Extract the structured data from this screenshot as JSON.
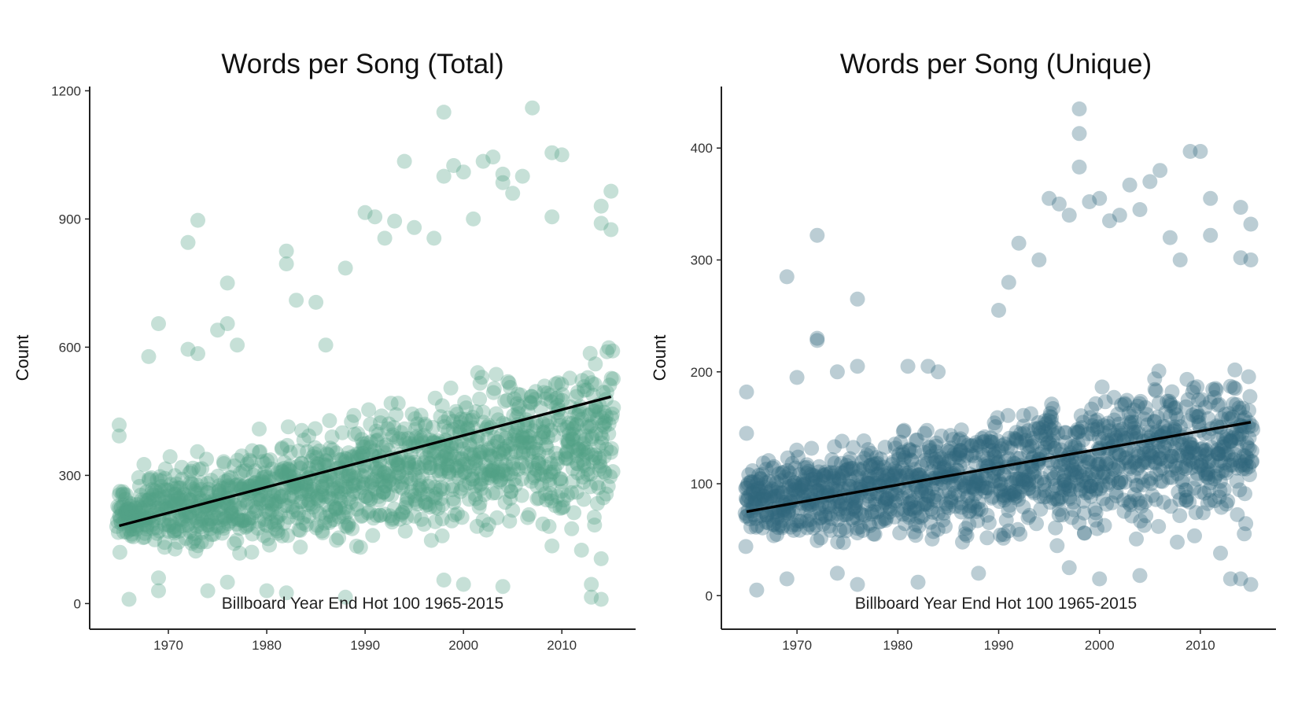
{
  "chart_data": [
    {
      "id": "total",
      "type": "scatter",
      "title": "Words per Song (Total)",
      "ylabel": "Count",
      "caption": "Billboard Year End Hot 100 1965-2015",
      "color": "#52a285",
      "point_opacity": 0.33,
      "xlim": [
        1962,
        2017.5
      ],
      "ylim": [
        -60,
        1210
      ],
      "xticks": [
        1970,
        1980,
        1990,
        2000,
        2010
      ],
      "yticks": [
        0,
        300,
        600,
        900,
        1200
      ],
      "year_range": [
        1965,
        2015
      ],
      "trend": {
        "x": [
          1965,
          2015
        ],
        "y": [
          182,
          484
        ]
      },
      "band": {
        "low_start": 95,
        "low_end": 185,
        "high_start": 310,
        "high_end": 610,
        "spread": 1
      },
      "outliers": [
        {
          "x": 1965,
          "y": 418
        },
        {
          "x": 1965,
          "y": 392
        },
        {
          "x": 1966,
          "y": 10
        },
        {
          "x": 1968,
          "y": 578
        },
        {
          "x": 1969,
          "y": 655
        },
        {
          "x": 1969,
          "y": 60
        },
        {
          "x": 1969,
          "y": 30
        },
        {
          "x": 1972,
          "y": 845
        },
        {
          "x": 1973,
          "y": 897
        },
        {
          "x": 1972,
          "y": 595
        },
        {
          "x": 1973,
          "y": 585
        },
        {
          "x": 1975,
          "y": 640
        },
        {
          "x": 1976,
          "y": 750
        },
        {
          "x": 1976,
          "y": 655
        },
        {
          "x": 1977,
          "y": 605
        },
        {
          "x": 1974,
          "y": 30
        },
        {
          "x": 1976,
          "y": 50
        },
        {
          "x": 1980,
          "y": 30
        },
        {
          "x": 1982,
          "y": 825
        },
        {
          "x": 1982,
          "y": 795
        },
        {
          "x": 1983,
          "y": 710
        },
        {
          "x": 1985,
          "y": 705
        },
        {
          "x": 1982,
          "y": 25
        },
        {
          "x": 1986,
          "y": 605
        },
        {
          "x": 1988,
          "y": 785
        },
        {
          "x": 1988,
          "y": 15
        },
        {
          "x": 1990,
          "y": 915
        },
        {
          "x": 1991,
          "y": 905
        },
        {
          "x": 1993,
          "y": 895
        },
        {
          "x": 1994,
          "y": 1035
        },
        {
          "x": 1992,
          "y": 855
        },
        {
          "x": 1995,
          "y": 880
        },
        {
          "x": 1997,
          "y": 855
        },
        {
          "x": 1998,
          "y": 1150
        },
        {
          "x": 1998,
          "y": 1000
        },
        {
          "x": 1999,
          "y": 1025
        },
        {
          "x": 2000,
          "y": 1010
        },
        {
          "x": 2001,
          "y": 900
        },
        {
          "x": 2002,
          "y": 1035
        },
        {
          "x": 2003,
          "y": 1045
        },
        {
          "x": 2004,
          "y": 1005
        },
        {
          "x": 2004,
          "y": 985
        },
        {
          "x": 2005,
          "y": 960
        },
        {
          "x": 2006,
          "y": 1000
        },
        {
          "x": 2007,
          "y": 1160
        },
        {
          "x": 2009,
          "y": 1055
        },
        {
          "x": 2010,
          "y": 1050
        },
        {
          "x": 2009,
          "y": 905
        },
        {
          "x": 2014,
          "y": 930
        },
        {
          "x": 2015,
          "y": 965
        },
        {
          "x": 2014,
          "y": 890
        },
        {
          "x": 2015,
          "y": 875
        },
        {
          "x": 2013,
          "y": 45
        },
        {
          "x": 2013,
          "y": 15
        },
        {
          "x": 2014,
          "y": 10
        },
        {
          "x": 1998,
          "y": 55
        },
        {
          "x": 2000,
          "y": 45
        },
        {
          "x": 2004,
          "y": 40
        },
        {
          "x": 2011,
          "y": 175
        },
        {
          "x": 2012,
          "y": 125
        },
        {
          "x": 2014,
          "y": 105
        },
        {
          "x": 2009,
          "y": 135
        }
      ]
    },
    {
      "id": "unique",
      "type": "scatter",
      "title": "Words per Song (Unique)",
      "ylabel": "Count",
      "caption": "Billboard Year End Hot 100 1965-2015",
      "color": "#32667c",
      "point_opacity": 0.33,
      "xlim": [
        1962.5,
        2017.5
      ],
      "ylim": [
        -30,
        455
      ],
      "xticks": [
        1970,
        1980,
        1990,
        2000,
        2010
      ],
      "yticks": [
        0,
        100,
        200,
        300,
        400
      ],
      "year_range": [
        1965,
        2015
      ],
      "trend": {
        "x": [
          1965,
          2015
        ],
        "y": [
          75,
          155
        ]
      },
      "band": {
        "low_start": 42,
        "low_end": 60,
        "high_start": 122,
        "high_end": 215,
        "spread": 1
      },
      "outliers": [
        {
          "x": 1965,
          "y": 182
        },
        {
          "x": 1965,
          "y": 145
        },
        {
          "x": 1966,
          "y": 5
        },
        {
          "x": 1969,
          "y": 285
        },
        {
          "x": 1969,
          "y": 15
        },
        {
          "x": 1970,
          "y": 195
        },
        {
          "x": 1972,
          "y": 322
        },
        {
          "x": 1972,
          "y": 230
        },
        {
          "x": 1972,
          "y": 228
        },
        {
          "x": 1974,
          "y": 200
        },
        {
          "x": 1976,
          "y": 265
        },
        {
          "x": 1976,
          "y": 205
        },
        {
          "x": 1976,
          "y": 10
        },
        {
          "x": 1974,
          "y": 20
        },
        {
          "x": 1982,
          "y": 12
        },
        {
          "x": 1981,
          "y": 205
        },
        {
          "x": 1983,
          "y": 205
        },
        {
          "x": 1984,
          "y": 200
        },
        {
          "x": 1988,
          "y": 20
        },
        {
          "x": 1990,
          "y": 255
        },
        {
          "x": 1991,
          "y": 280
        },
        {
          "x": 1992,
          "y": 315
        },
        {
          "x": 1994,
          "y": 300
        },
        {
          "x": 1995,
          "y": 355
        },
        {
          "x": 1996,
          "y": 350
        },
        {
          "x": 1997,
          "y": 340
        },
        {
          "x": 1998,
          "y": 435
        },
        {
          "x": 1998,
          "y": 413
        },
        {
          "x": 1998,
          "y": 383
        },
        {
          "x": 1999,
          "y": 352
        },
        {
          "x": 2000,
          "y": 355
        },
        {
          "x": 2001,
          "y": 335
        },
        {
          "x": 2002,
          "y": 340
        },
        {
          "x": 2003,
          "y": 367
        },
        {
          "x": 2004,
          "y": 345
        },
        {
          "x": 2005,
          "y": 370
        },
        {
          "x": 2006,
          "y": 380
        },
        {
          "x": 2007,
          "y": 320
        },
        {
          "x": 2008,
          "y": 300
        },
        {
          "x": 2009,
          "y": 397
        },
        {
          "x": 2010,
          "y": 397
        },
        {
          "x": 2011,
          "y": 355
        },
        {
          "x": 2011,
          "y": 322
        },
        {
          "x": 2014,
          "y": 347
        },
        {
          "x": 2015,
          "y": 332
        },
        {
          "x": 2014,
          "y": 302
        },
        {
          "x": 2015,
          "y": 300
        },
        {
          "x": 2014,
          "y": 15
        },
        {
          "x": 2015,
          "y": 10
        },
        {
          "x": 2013,
          "y": 15
        },
        {
          "x": 2000,
          "y": 15
        },
        {
          "x": 2004,
          "y": 18
        },
        {
          "x": 1997,
          "y": 25
        },
        {
          "x": 2012,
          "y": 38
        }
      ]
    }
  ]
}
